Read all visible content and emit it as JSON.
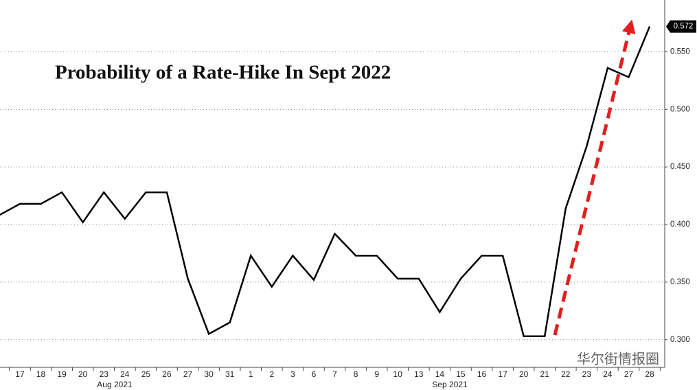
{
  "chart_data": {
    "type": "line",
    "title": "Probability of a Rate-Hike In Sept 2022",
    "categories": [
      null,
      "17",
      "18",
      "19",
      "20",
      "23",
      "24",
      "25",
      "26",
      "27",
      "30",
      "31",
      "1",
      "2",
      "3",
      "6",
      "7",
      "8",
      "9",
      "10",
      "13",
      "14",
      "15",
      "16",
      "17",
      "20",
      "21",
      "22",
      "23",
      "24",
      "27",
      "28"
    ],
    "month_labels": [
      "Aug 2021",
      "Sep 2021"
    ],
    "series": [
      {
        "name": "Probability",
        "color": "#000000",
        "values": [
          0.408,
          0.418,
          0.418,
          0.428,
          0.402,
          0.428,
          0.405,
          0.428,
          0.428,
          0.353,
          0.305,
          0.315,
          0.373,
          0.346,
          0.373,
          0.352,
          0.392,
          0.373,
          0.373,
          0.353,
          0.353,
          0.324,
          0.353,
          0.373,
          0.373,
          0.303,
          0.303,
          0.414,
          0.468,
          0.536,
          0.528,
          0.572
        ]
      }
    ],
    "ylim": [
      0.276,
      0.595
    ],
    "yticks": [
      {
        "value": 0.3,
        "label": "0.300"
      },
      {
        "value": 0.35,
        "label": "0.350"
      },
      {
        "value": 0.4,
        "label": "0.400"
      },
      {
        "value": 0.45,
        "label": "0.450"
      },
      {
        "value": 0.5,
        "label": "0.500"
      },
      {
        "value": 0.55,
        "label": "0.550"
      }
    ],
    "grid": true,
    "watermark": "华尔街情报圈"
  }
}
